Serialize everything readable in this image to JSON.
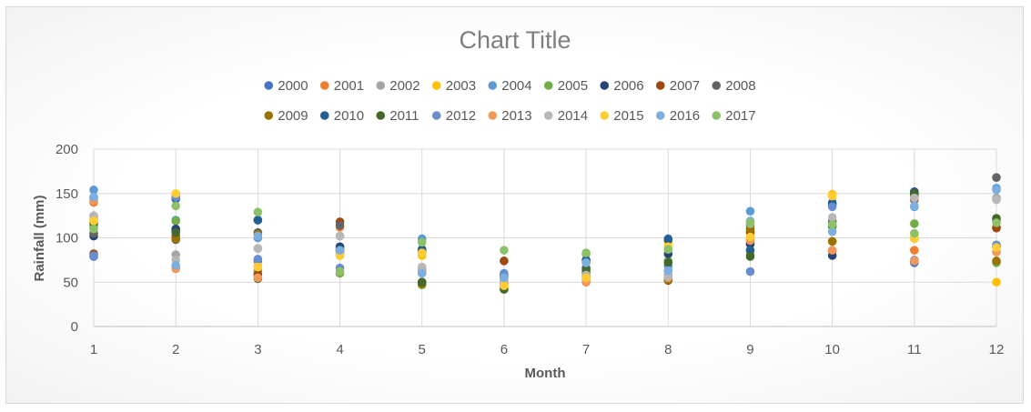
{
  "chart_data": {
    "type": "scatter",
    "title": "Chart Title",
    "xlabel": "Month",
    "ylabel": "Rainfall (mm)",
    "xlim": [
      1,
      12
    ],
    "ylim": [
      0,
      200
    ],
    "x_ticks": [
      "1",
      "2",
      "3",
      "4",
      "5",
      "6",
      "7",
      "8",
      "9",
      "10",
      "11",
      "12"
    ],
    "y_ticks": [
      "0",
      "50",
      "100",
      "150",
      "200"
    ],
    "grid": true,
    "legend_position": "top",
    "x": [
      1,
      2,
      3,
      4,
      5,
      6,
      7,
      8,
      9,
      10,
      11,
      12
    ],
    "series": [
      {
        "name": "2000",
        "color": "#4472c4",
        "values": [
          79,
          108,
          74,
          88,
          86,
          55,
          61,
          99,
          93,
          137,
          72,
          90
        ]
      },
      {
        "name": "2001",
        "color": "#ed7d31",
        "values": [
          140,
          66,
          58,
          112,
          50,
          47,
          50,
          54,
          105,
          85,
          86,
          112
        ]
      },
      {
        "name": "2002",
        "color": "#a5a5a5",
        "values": [
          124,
          81,
          88,
          102,
          60,
          55,
          57,
          57,
          98,
          117,
          147,
          145
        ]
      },
      {
        "name": "2003",
        "color": "#ffc000",
        "values": [
          120,
          149,
          68,
          80,
          80,
          45,
          56,
          95,
          100,
          149,
          100,
          50
        ]
      },
      {
        "name": "2004",
        "color": "#5b9bd5",
        "values": [
          154,
          120,
          100,
          86,
          99,
          60,
          72,
          68,
          130,
          140,
          135,
          156
        ]
      },
      {
        "name": "2005",
        "color": "#70ad47",
        "values": [
          112,
          119,
          63,
          60,
          47,
          42,
          82,
          74,
          81,
          114,
          116,
          72
        ]
      },
      {
        "name": "2006",
        "color": "#264478",
        "values": [
          102,
          110,
          120,
          90,
          84,
          58,
          74,
          82,
          93,
          80,
          152,
          90
        ]
      },
      {
        "name": "2007",
        "color": "#9e480e",
        "values": [
          82,
          102,
          59,
          118,
          50,
          74,
          55,
          52,
          107,
          96,
          143,
          111
        ]
      },
      {
        "name": "2008",
        "color": "#636363",
        "values": [
          105,
          98,
          106,
          114,
          62,
          52,
          66,
          57,
          114,
          119,
          149,
          168
        ]
      },
      {
        "name": "2009",
        "color": "#997300",
        "values": [
          117,
          99,
          104,
          85,
          48,
          44,
          61,
          53,
          110,
          96,
          147,
          74
        ]
      },
      {
        "name": "2010",
        "color": "#255e91",
        "values": [
          145,
          144,
          120,
          82,
          87,
          56,
          75,
          98,
          86,
          139,
          151,
          120
        ]
      },
      {
        "name": "2011",
        "color": "#43682b",
        "values": [
          116,
          106,
          54,
          86,
          50,
          42,
          64,
          72,
          79,
          113,
          150,
          122
        ]
      },
      {
        "name": "2012",
        "color": "#698ed0",
        "values": [
          80,
          146,
          76,
          66,
          64,
          58,
          57,
          63,
          62,
          135,
          75,
          92
        ]
      },
      {
        "name": "2013",
        "color": "#f1975a",
        "values": [
          142,
          65,
          55,
          84,
          63,
          49,
          51,
          55,
          97,
          86,
          74,
          84
        ]
      },
      {
        "name": "2014",
        "color": "#b7b7b7",
        "values": [
          125,
          75,
          88,
          102,
          67,
          53,
          58,
          56,
          116,
          123,
          145,
          143
        ]
      },
      {
        "name": "2015",
        "color": "#ffcd33",
        "values": [
          119,
          150,
          67,
          81,
          83,
          46,
          55,
          90,
          101,
          147,
          99,
          89
        ]
      },
      {
        "name": "2016",
        "color": "#7cafdd",
        "values": [
          146,
          69,
          102,
          86,
          60,
          55,
          72,
          63,
          119,
          107,
          136,
          154
        ]
      },
      {
        "name": "2017",
        "color": "#8cc168",
        "values": [
          110,
          136,
          129,
          62,
          95,
          86,
          83,
          87,
          117,
          115,
          105,
          117
        ]
      }
    ]
  }
}
